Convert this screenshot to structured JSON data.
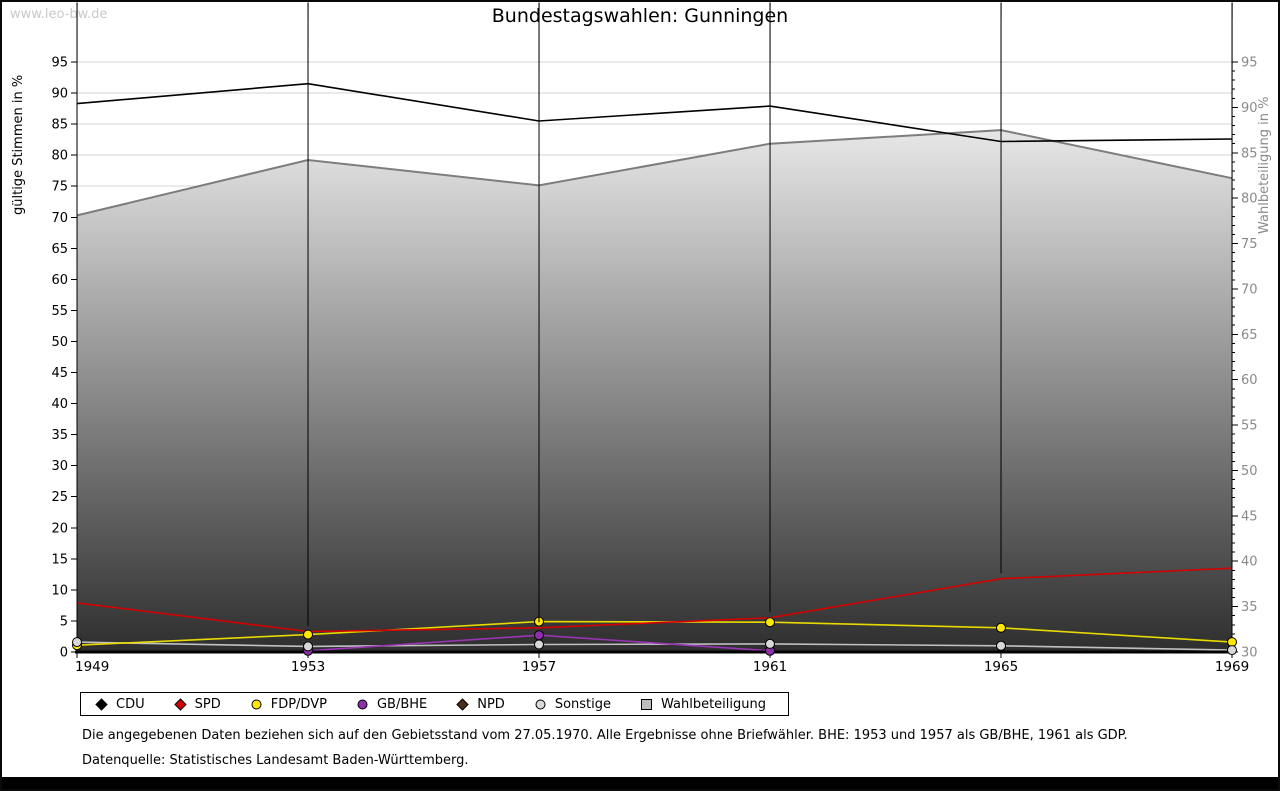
{
  "page": {
    "watermark": "www.leo-bw.de",
    "title": "Bundestagswahlen: Gunningen",
    "footnotes": [
      "Die angegebenen Daten beziehen sich auf den Gebietsstand vom 27.05.1970. Alle Ergebnisse ohne Briefwähler. BHE: 1953 und 1957 als GB/BHE, 1961 als GDP.",
      "Datenquelle: Statistisches Landesamt Baden-Württemberg."
    ]
  },
  "chart_data": {
    "type": "line",
    "title": "Bundestagswahlen: Gunningen",
    "categories": [
      1949,
      1953,
      1957,
      1961,
      1965,
      1969
    ],
    "left_axis": {
      "label": "gültige Stimmen in %",
      "min": 0,
      "max": 95,
      "tick_step": 5,
      "label_color": "#000000"
    },
    "right_axis": {
      "label": "Wahlbeteiligung in %",
      "min": 30,
      "max": 95,
      "tick_step": 5,
      "label_color": "#8a8a8a"
    },
    "grid": true,
    "legend_position": "bottom",
    "grid_color": "#d6d6d6",
    "area_gradient": [
      "#ffffff",
      "#2e2e2e"
    ],
    "series": [
      {
        "name": "CDU",
        "axis": "left",
        "color": "#000000",
        "marker_fill": "#000000",
        "marker": "diamond",
        "values": [
          88.3,
          91.5,
          85.5,
          87.9,
          82.2,
          82.6
        ]
      },
      {
        "name": "SPD",
        "axis": "left",
        "color": "#d40000",
        "marker_fill": "#cc0000",
        "marker": "diamond",
        "values": [
          7.9,
          3.3,
          3.9,
          5.5,
          11.8,
          13.5
        ]
      },
      {
        "name": "FDP/DVP",
        "axis": "left",
        "color": "#e8da00",
        "marker_fill": "#ffe800",
        "marker": "circle",
        "values": [
          1.1,
          2.8,
          4.9,
          4.8,
          3.9,
          1.6
        ]
      },
      {
        "name": "GB/BHE",
        "axis": "left",
        "color": "#9a35b5",
        "marker_fill": "#8d2fa8",
        "marker": "circle",
        "values": [
          null,
          0.2,
          2.7,
          0.2,
          null,
          null
        ]
      },
      {
        "name": "NPD",
        "axis": "left",
        "color": "#5a3420",
        "marker_fill": "#4e2c1a",
        "marker": "diamond",
        "values": [
          null,
          null,
          null,
          null,
          null,
          1.2
        ]
      },
      {
        "name": "Sonstige",
        "axis": "left",
        "color": "#c0c0c0",
        "marker_fill": "#d8d8d8",
        "marker": "circle",
        "values": [
          1.6,
          0.9,
          1.2,
          1.3,
          1.0,
          0.3
        ]
      },
      {
        "name": "Wahlbeteiligung",
        "axis": "right",
        "color": "#7d7d7d",
        "marker_fill": "#bdbdbd",
        "marker": "none",
        "legend_marker": "square",
        "area": true,
        "values": [
          78.1,
          84.2,
          81.4,
          86.0,
          87.5,
          82.2
        ]
      }
    ]
  }
}
